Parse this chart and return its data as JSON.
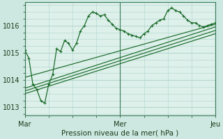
{
  "bg_color": "#cce8e0",
  "plot_bg_color": "#ddf0ea",
  "grid_color": "#b0d4cc",
  "line_color": "#1a6b2a",
  "title": "Pression niveau de la mer( hPa )",
  "xlim": [
    0,
    48
  ],
  "ylim": [
    1012.7,
    1016.85
  ],
  "yticks": [
    1013,
    1014,
    1015,
    1016
  ],
  "xticks": [
    0,
    24,
    48
  ],
  "xticklabels": [
    "Mar",
    "Mer",
    "Jeu"
  ],
  "vlines": [
    0,
    24,
    48
  ],
  "series0_x": [
    0,
    1,
    2,
    3,
    4,
    5,
    6,
    7,
    8,
    9,
    10,
    11,
    12,
    13,
    14,
    15,
    16,
    17,
    18,
    19,
    20,
    21,
    22,
    23,
    24,
    25,
    26,
    27,
    28,
    29,
    30,
    31,
    32,
    33,
    34,
    35,
    36,
    37,
    38,
    39,
    40,
    41,
    42,
    43,
    44,
    45,
    46,
    47,
    48
  ],
  "series0_y": [
    1015.1,
    1014.8,
    1013.85,
    1013.65,
    1013.25,
    1013.15,
    1013.85,
    1014.2,
    1015.15,
    1015.05,
    1015.45,
    1015.35,
    1015.1,
    1015.35,
    1015.8,
    1016.0,
    1016.35,
    1016.5,
    1016.45,
    1016.35,
    1016.4,
    1016.2,
    1016.05,
    1015.9,
    1015.85,
    1015.8,
    1015.7,
    1015.65,
    1015.6,
    1015.55,
    1015.7,
    1015.8,
    1016.0,
    1016.1,
    1016.2,
    1016.25,
    1016.55,
    1016.65,
    1016.55,
    1016.5,
    1016.35,
    1016.2,
    1016.1,
    1016.1,
    1016.0,
    1015.95,
    1016.0,
    1016.05,
    1016.1
  ],
  "diag_lines": [
    {
      "x": [
        0,
        48
      ],
      "y": [
        1014.1,
        1016.05
      ]
    },
    {
      "x": [
        0,
        48
      ],
      "y": [
        1013.7,
        1015.95
      ]
    },
    {
      "x": [
        0,
        48
      ],
      "y": [
        1013.6,
        1015.82
      ]
    },
    {
      "x": [
        0,
        48
      ],
      "y": [
        1013.5,
        1015.7
      ]
    }
  ]
}
